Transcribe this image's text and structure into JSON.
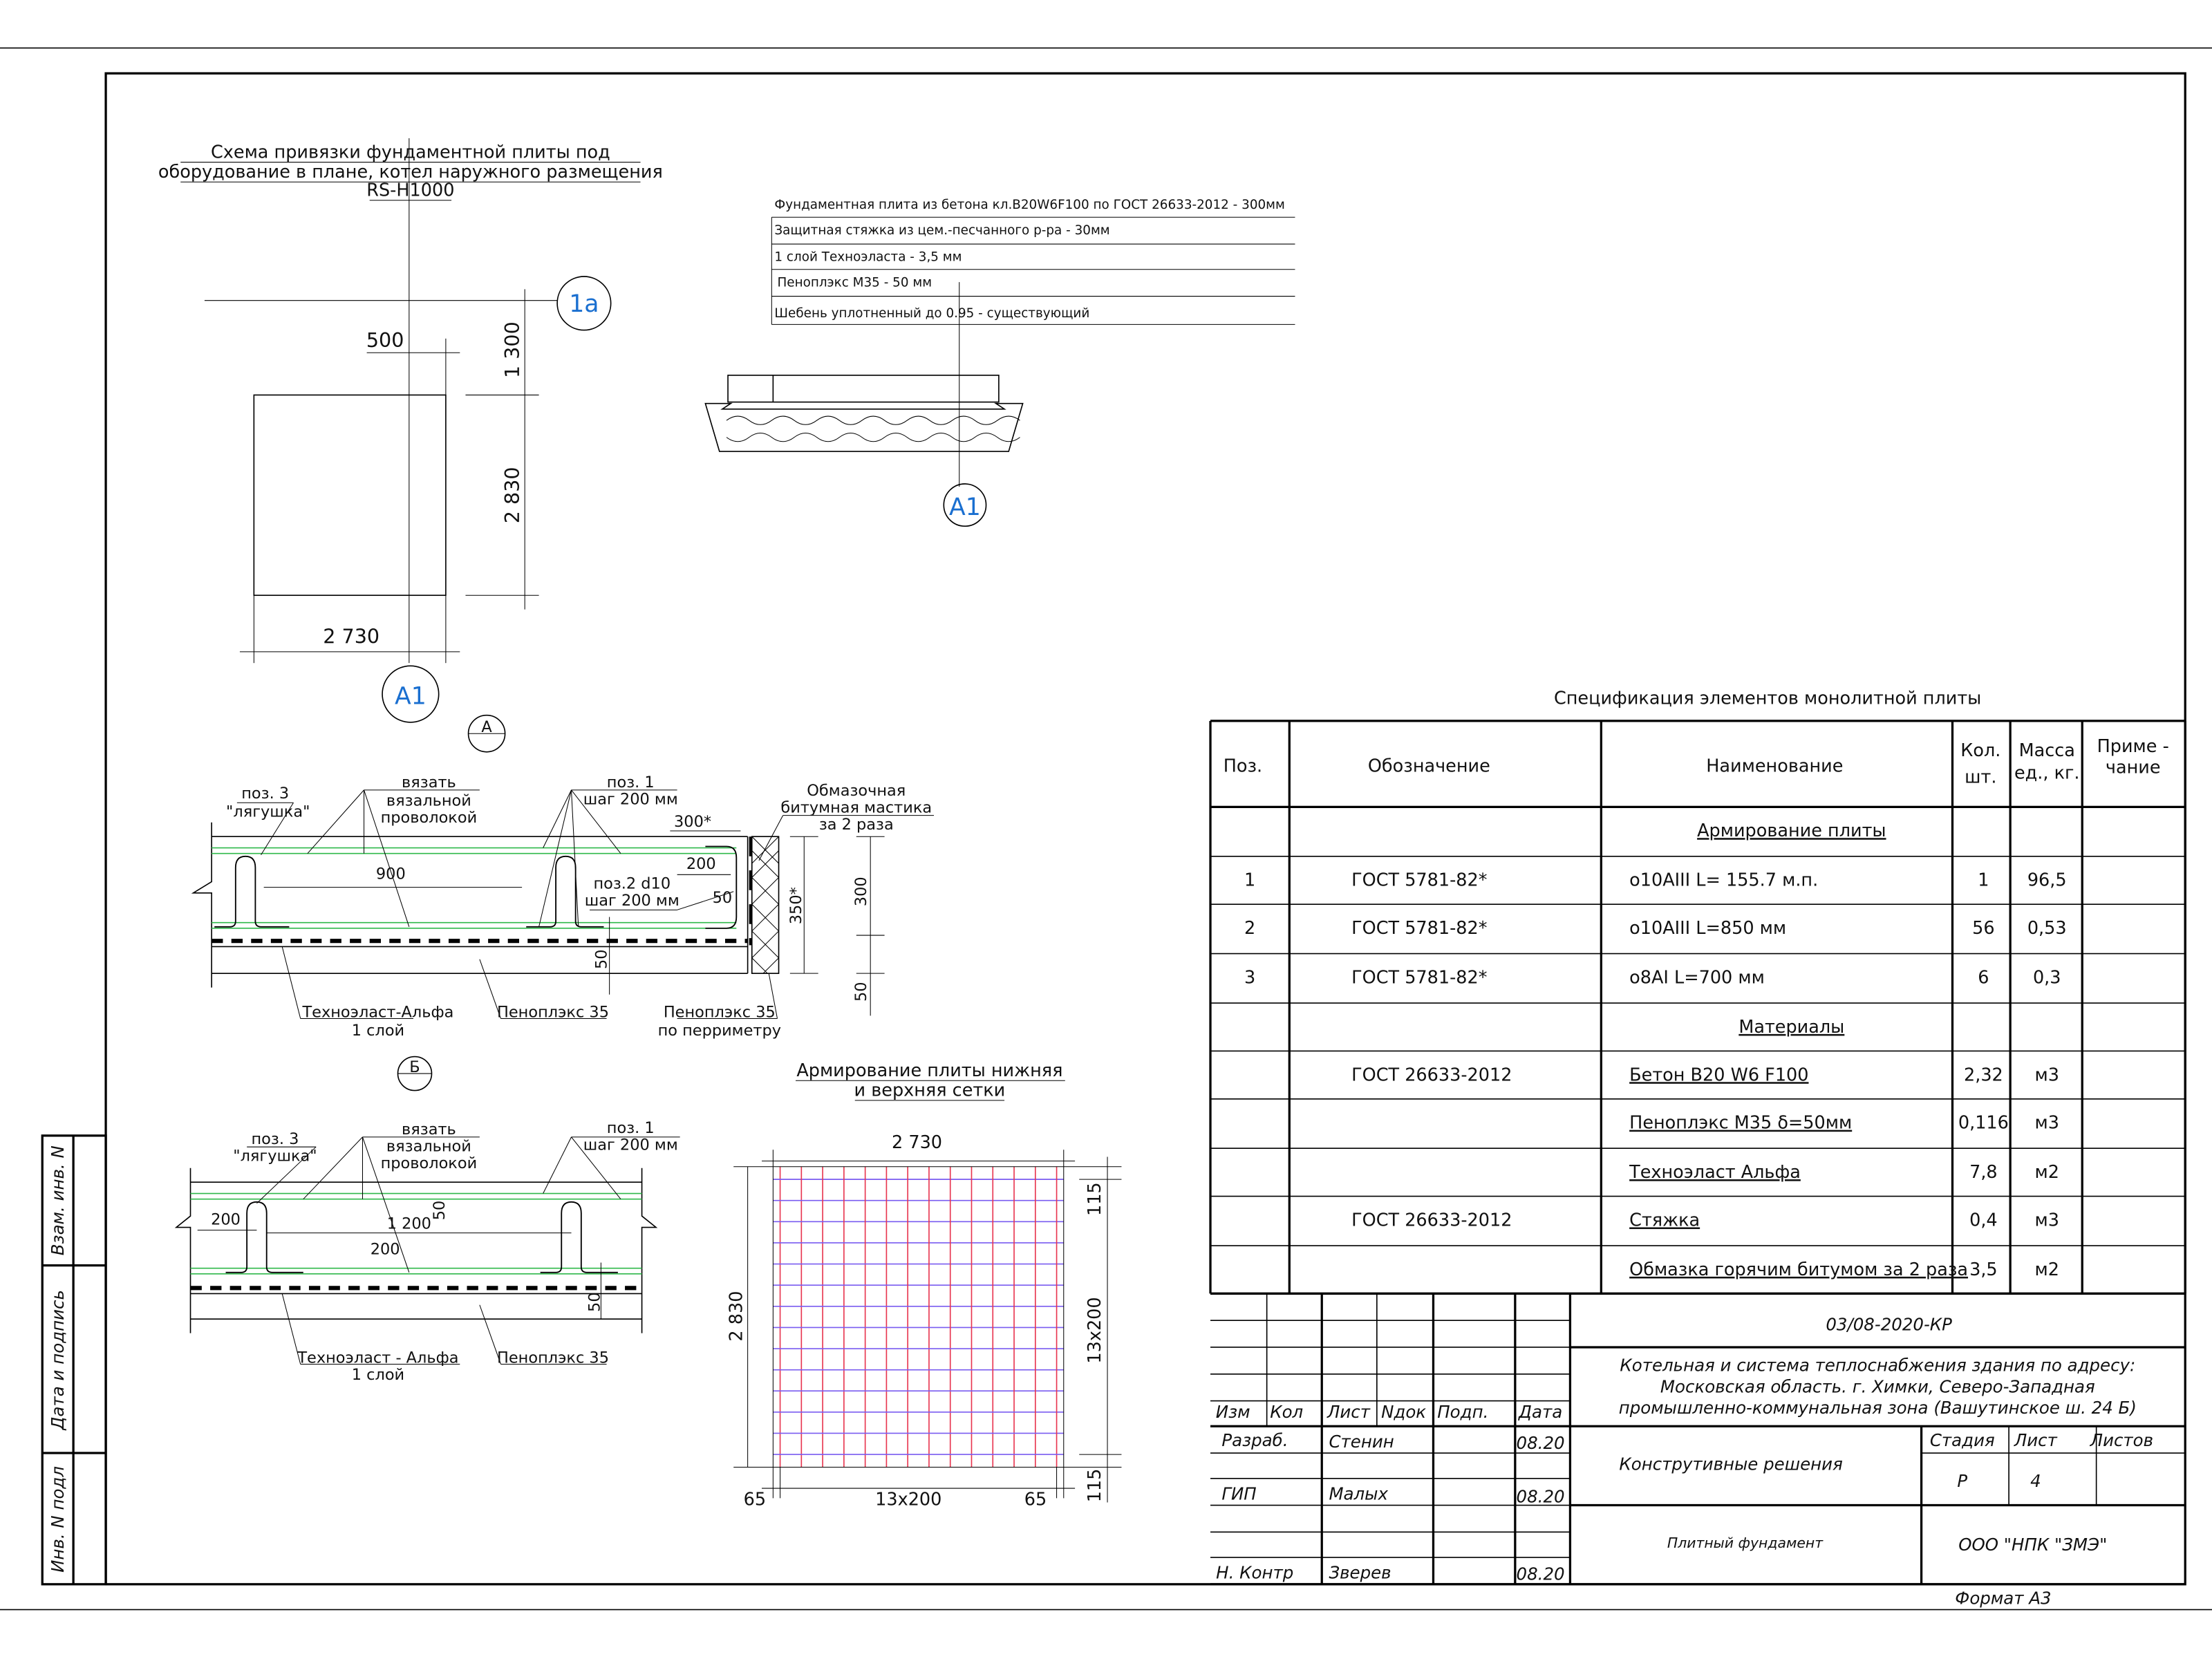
{
  "plan": {
    "title": [
      "Схема привязки фундаментной плиты под",
      "оборудование в плане, котел наружного размещения",
      "RS-H1000"
    ],
    "axis_1a": "1а",
    "axis_a1": "А1",
    "dim_500": "500",
    "dim_1300": "1 300",
    "dim_2830": "2 830",
    "dim_2730": "2 730"
  },
  "layers": {
    "items": [
      "Фундаментная плита из бетона кл.B20W6F100 по ГОСТ 26633-2012 - 300мм",
      "Защитная стяжка из цем.-песчанного р-ра - 30мм",
      "1 слой Техноэласта - 3,5 мм",
      "Пеноплэкс М35 - 50 мм",
      "Шебень уплотненный до 0.95 - существующий"
    ],
    "axis": "А1"
  },
  "section_a": {
    "marker": "А",
    "pos3": "поз. 3",
    "frog": "\"лягушка\"",
    "tie": [
      "вязать",
      "вязальной",
      "проволокой"
    ],
    "pos1": "поз. 1",
    "pos1_step": "шаг 200 мм",
    "mastic": [
      "Обмазочная",
      "битумная мастика",
      "за 2 раза"
    ],
    "dim_300s": "300*",
    "dim_200": "200",
    "dim_900": "900",
    "pos2": "поз.2 d10",
    "pos2_step": "шаг 200 мм",
    "dim_50a": "50",
    "dim_350s": "350*",
    "dim_300": "300",
    "dim_50b": "50",
    "dim_50c": "50",
    "technoelast": "Техноэласт-Альфа",
    "technoelast_layers": "1 слой",
    "penoplex": "Пеноплэкс 35",
    "penoplex_perim": "Пеноплэкс 35",
    "penoplex_perim2": "по перриметру"
  },
  "section_b": {
    "marker": "Б",
    "pos3": "поз. 3",
    "frog": "\"лягушка\"",
    "tie": [
      "вязать",
      "вязальной",
      "проволокой"
    ],
    "pos1": "поз. 1",
    "pos1_step": "шаг 200 мм",
    "dim_200a": "200",
    "dim_1200": "1 200",
    "dim_50a": "50",
    "dim_200b": "200",
    "dim_50b": "50",
    "technoelast": "Техноэласт - Альфа",
    "technoelast_layers": "1 слой",
    "penoplex": "Пеноплэкс 35"
  },
  "mesh": {
    "title": [
      "Армирование плиты нижняя",
      "и верхняя сетки"
    ],
    "dim_top": "2 730",
    "dim_left": "2 830",
    "dim_r1": "115",
    "dim_r2": "13х200",
    "dim_r3": "115",
    "dim_b1": "65",
    "dim_b2": "13х200",
    "dim_b3": "65",
    "colors": {
      "vertical": "#e8354f",
      "horizontal": "#7a5cf0"
    }
  },
  "spec": {
    "title": "Спецификация элементов монолитной плиты",
    "headers": {
      "pos": "Поз.",
      "designation": "Обозначение",
      "name": "Наименование",
      "qty": [
        "Кол.",
        "шт."
      ],
      "mass": [
        "Масса",
        "ед., кг."
      ],
      "note": [
        "Приме -",
        "чание"
      ]
    },
    "rows": [
      {
        "section": "Армирование плиты"
      },
      {
        "pos": "1",
        "designation": "ГОСТ 5781-82*",
        "name": "о10АIII L= 155.7 м.п.",
        "qty": "1",
        "mass": "96,5"
      },
      {
        "pos": "2",
        "designation": "ГОСТ 5781-82*",
        "name": "о10АIII L=850 мм",
        "qty": "56",
        "mass": "0,53"
      },
      {
        "pos": "3",
        "designation": "ГОСТ 5781-82*",
        "name": "о8АI L=700 мм",
        "qty": "6",
        "mass": "0,3"
      },
      {
        "section": "Материалы"
      },
      {
        "designation": "ГОСТ 26633-2012",
        "name": "Бетон В20 W6 F100",
        "qty": "2,32",
        "mass": "м3"
      },
      {
        "name": "Пеноплэкс М35 δ=50мм",
        "qty": "0,116",
        "mass": "м3"
      },
      {
        "name": "Техноэласт Альфа",
        "qty": "7,8",
        "mass": "м2"
      },
      {
        "designation": "ГОСТ 26633-2012",
        "name": "Стяжка",
        "qty": "0,4",
        "mass": "м3"
      },
      {
        "name": "Обмазка горячим битумом за 2 раза",
        "qty": "3,5",
        "mass": "м2"
      }
    ]
  },
  "title_block": {
    "doc_code": "03/08-2020-КР",
    "project": [
      "Котельная и система теплоснабжения здания по адресу:",
      "Московская область. г. Химки, Северо-Западная",
      "промышленно-коммунальная зона (Вашутинское ш. 24 Б)"
    ],
    "cols": {
      "izm": "Изм",
      "kol": "Кол",
      "list": "Лист",
      "ndok": "Nдок",
      "podp": "Подп.",
      "data": "Дата"
    },
    "people": [
      {
        "role": "Разраб.",
        "name": "Стенин",
        "date": "08.20"
      },
      {
        "role": "ГИП",
        "name": "Малых",
        "date": "08.20"
      },
      {
        "role": "Н. Контр",
        "name": "Зверев",
        "date": "08.20"
      }
    ],
    "section_name": "Конструтивные решения",
    "stage_label": "Стадия",
    "sheet_label": "Лист",
    "sheets_label": "Листов",
    "stage": "Р",
    "sheet": "4",
    "drawing_name": "Плитный фундамент",
    "company": "ООО \"НПК \"ЗМЭ\"",
    "format": "Формат А3"
  },
  "side_stamp": {
    "replace": "Взам. инв. N",
    "date_sign": "Дата и подпись",
    "inv": "Инв. N подл"
  }
}
